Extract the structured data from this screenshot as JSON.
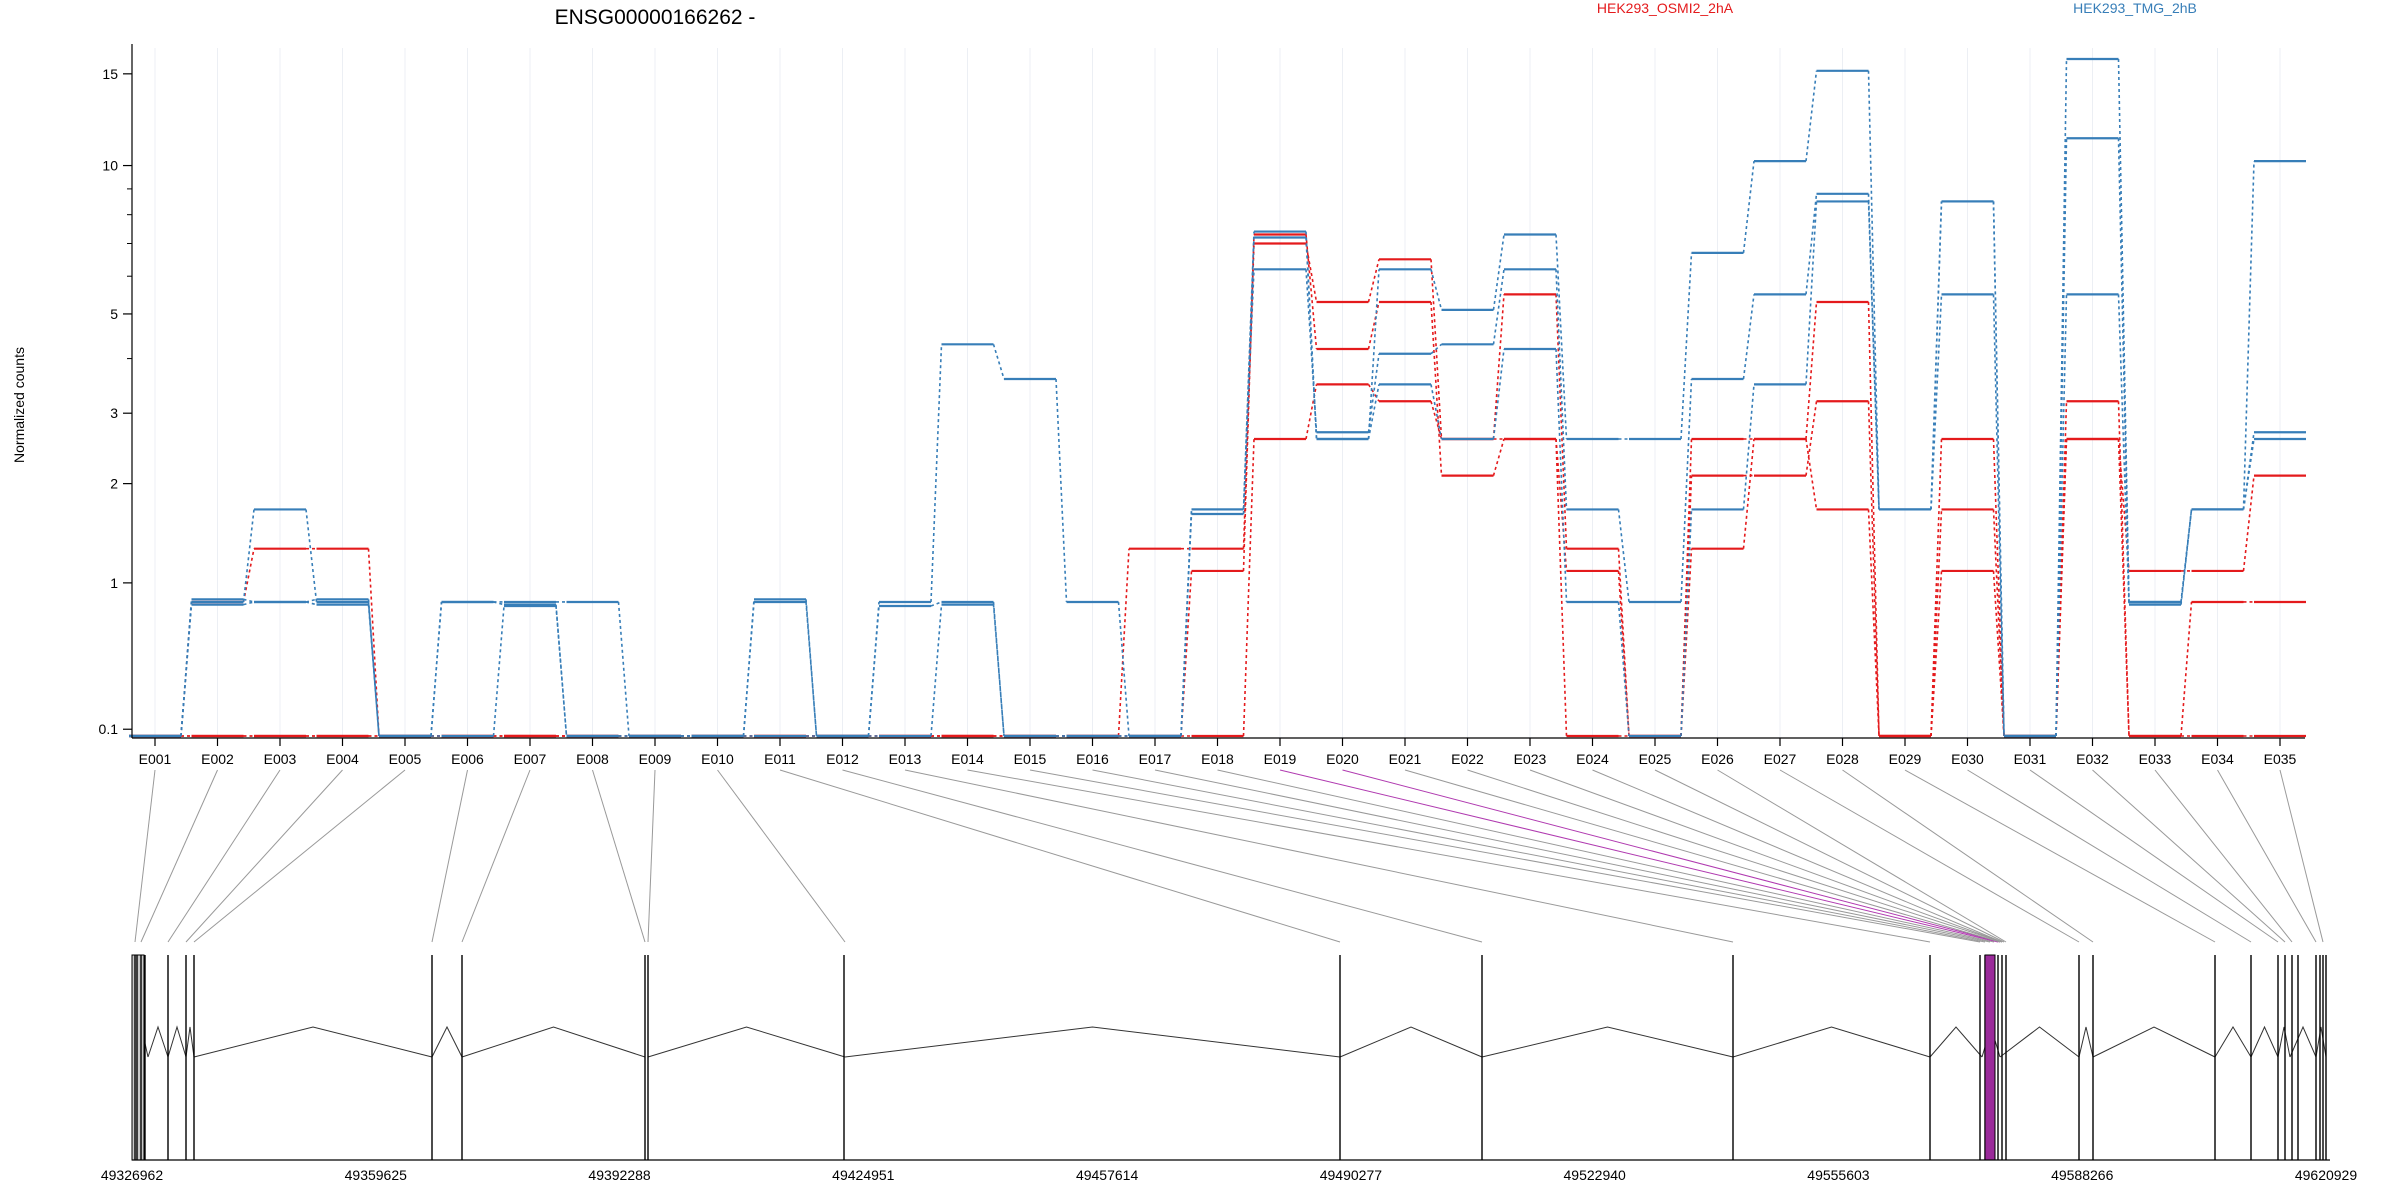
{
  "chart_data": {
    "type": "line",
    "title": "ENSG00000166262 -",
    "ylabel": "Normalized counts",
    "xlabel": "",
    "yscale": "log10(1+y)",
    "ylim": [
      0.07,
      17
    ],
    "yticks": [
      "0.1",
      "1",
      "2",
      "3",
      "5",
      "10",
      "15"
    ],
    "grid": "vertical per exon",
    "legend_position": "top",
    "legend": [
      {
        "name": "HEK293_OSMI2_2hA",
        "color": "#e41a1c"
      },
      {
        "name": "HEK293_TMG_2hB",
        "color": "#377eb8"
      }
    ],
    "categories": [
      "E001",
      "E002",
      "E003",
      "E004",
      "E005",
      "E006",
      "E007",
      "E008",
      "E009",
      "E010",
      "E011",
      "E012",
      "E013",
      "E014",
      "E015",
      "E016",
      "E017",
      "E018",
      "E019",
      "E020",
      "E021",
      "E022",
      "E023",
      "E024",
      "E025",
      "E026",
      "E027",
      "E028",
      "E029",
      "E030",
      "E031",
      "E032",
      "E033",
      "E034",
      "E035"
    ],
    "series": [
      {
        "color": "#e41a1c",
        "values": [
          0.07,
          0.85,
          1.3,
          1.3,
          0.07,
          0.07,
          0.07,
          0.07,
          0.07,
          0.07,
          0.07,
          0.07,
          0.07,
          0.07,
          0.07,
          0.07,
          1.3,
          1.3,
          7.0,
          5.3,
          6.5,
          2.6,
          5.5,
          1.3,
          0.07,
          2.6,
          2.6,
          5.3,
          0.07,
          2.6,
          0.07,
          2.6,
          1.1,
          1.1,
          2.1
        ]
      },
      {
        "color": "#e41a1c",
        "values": [
          0.07,
          0.07,
          0.07,
          0.07,
          0.07,
          0.07,
          0.07,
          0.07,
          0.07,
          0.07,
          0.07,
          0.07,
          0.07,
          0.07,
          0.07,
          0.07,
          0.07,
          1.1,
          7.3,
          4.2,
          5.3,
          2.1,
          2.6,
          1.1,
          0.07,
          2.1,
          2.1,
          3.2,
          0.07,
          1.7,
          0.07,
          3.2,
          0.07,
          0.85,
          0.85
        ]
      },
      {
        "color": "#e41a1c",
        "values": [
          0.07,
          0.07,
          0.07,
          0.07,
          0.07,
          0.07,
          0.07,
          0.07,
          0.07,
          0.07,
          0.07,
          0.07,
          0.07,
          0.07,
          0.07,
          0.07,
          0.07,
          0.07,
          2.6,
          3.5,
          3.2,
          2.6,
          2.6,
          0.07,
          0.07,
          1.3,
          2.6,
          1.7,
          0.07,
          1.1,
          0.07,
          2.6,
          0.07,
          0.07,
          0.07
        ]
      },
      {
        "color": "#377eb8",
        "values": [
          0.07,
          0.85,
          1.7,
          0.85,
          0.07,
          0.85,
          0.85,
          0.85,
          0.07,
          0.07,
          0.85,
          0.07,
          0.85,
          4.3,
          3.6,
          0.85,
          0.07,
          1.7,
          7.4,
          2.6,
          6.2,
          5.1,
          7.3,
          2.6,
          2.6,
          6.7,
          10.2,
          15.2,
          1.7,
          8.5,
          0.07,
          16.0,
          0.85,
          1.7,
          10.2
        ]
      },
      {
        "color": "#377eb8",
        "values": [
          0.07,
          0.87,
          0.85,
          0.87,
          0.07,
          0.85,
          0.83,
          0.07,
          0.07,
          0.07,
          0.87,
          0.07,
          0.82,
          0.85,
          0.07,
          0.07,
          0.07,
          1.7,
          6.2,
          2.7,
          4.1,
          4.3,
          6.2,
          1.7,
          0.85,
          3.6,
          5.5,
          8.8,
          1.7,
          8.5,
          0.07,
          11.3,
          0.85,
          1.7,
          2.6
        ]
      },
      {
        "color": "#377eb8",
        "values": [
          0.07,
          0.83,
          0.85,
          0.83,
          0.07,
          0.07,
          0.82,
          0.07,
          0.07,
          0.07,
          0.07,
          0.07,
          0.07,
          0.83,
          0.07,
          0.07,
          0.07,
          1.65,
          7.2,
          2.6,
          3.5,
          2.6,
          4.2,
          0.85,
          0.07,
          1.7,
          3.5,
          8.5,
          1.7,
          5.5,
          0.07,
          5.5,
          0.83,
          1.7,
          2.7
        ]
      }
    ],
    "genomic_axis_ticks": [
      "49326962",
      "49359625",
      "49392288",
      "49424951",
      "49457614",
      "49490277",
      "49522940",
      "49555603",
      "49588266",
      "49620929"
    ]
  }
}
